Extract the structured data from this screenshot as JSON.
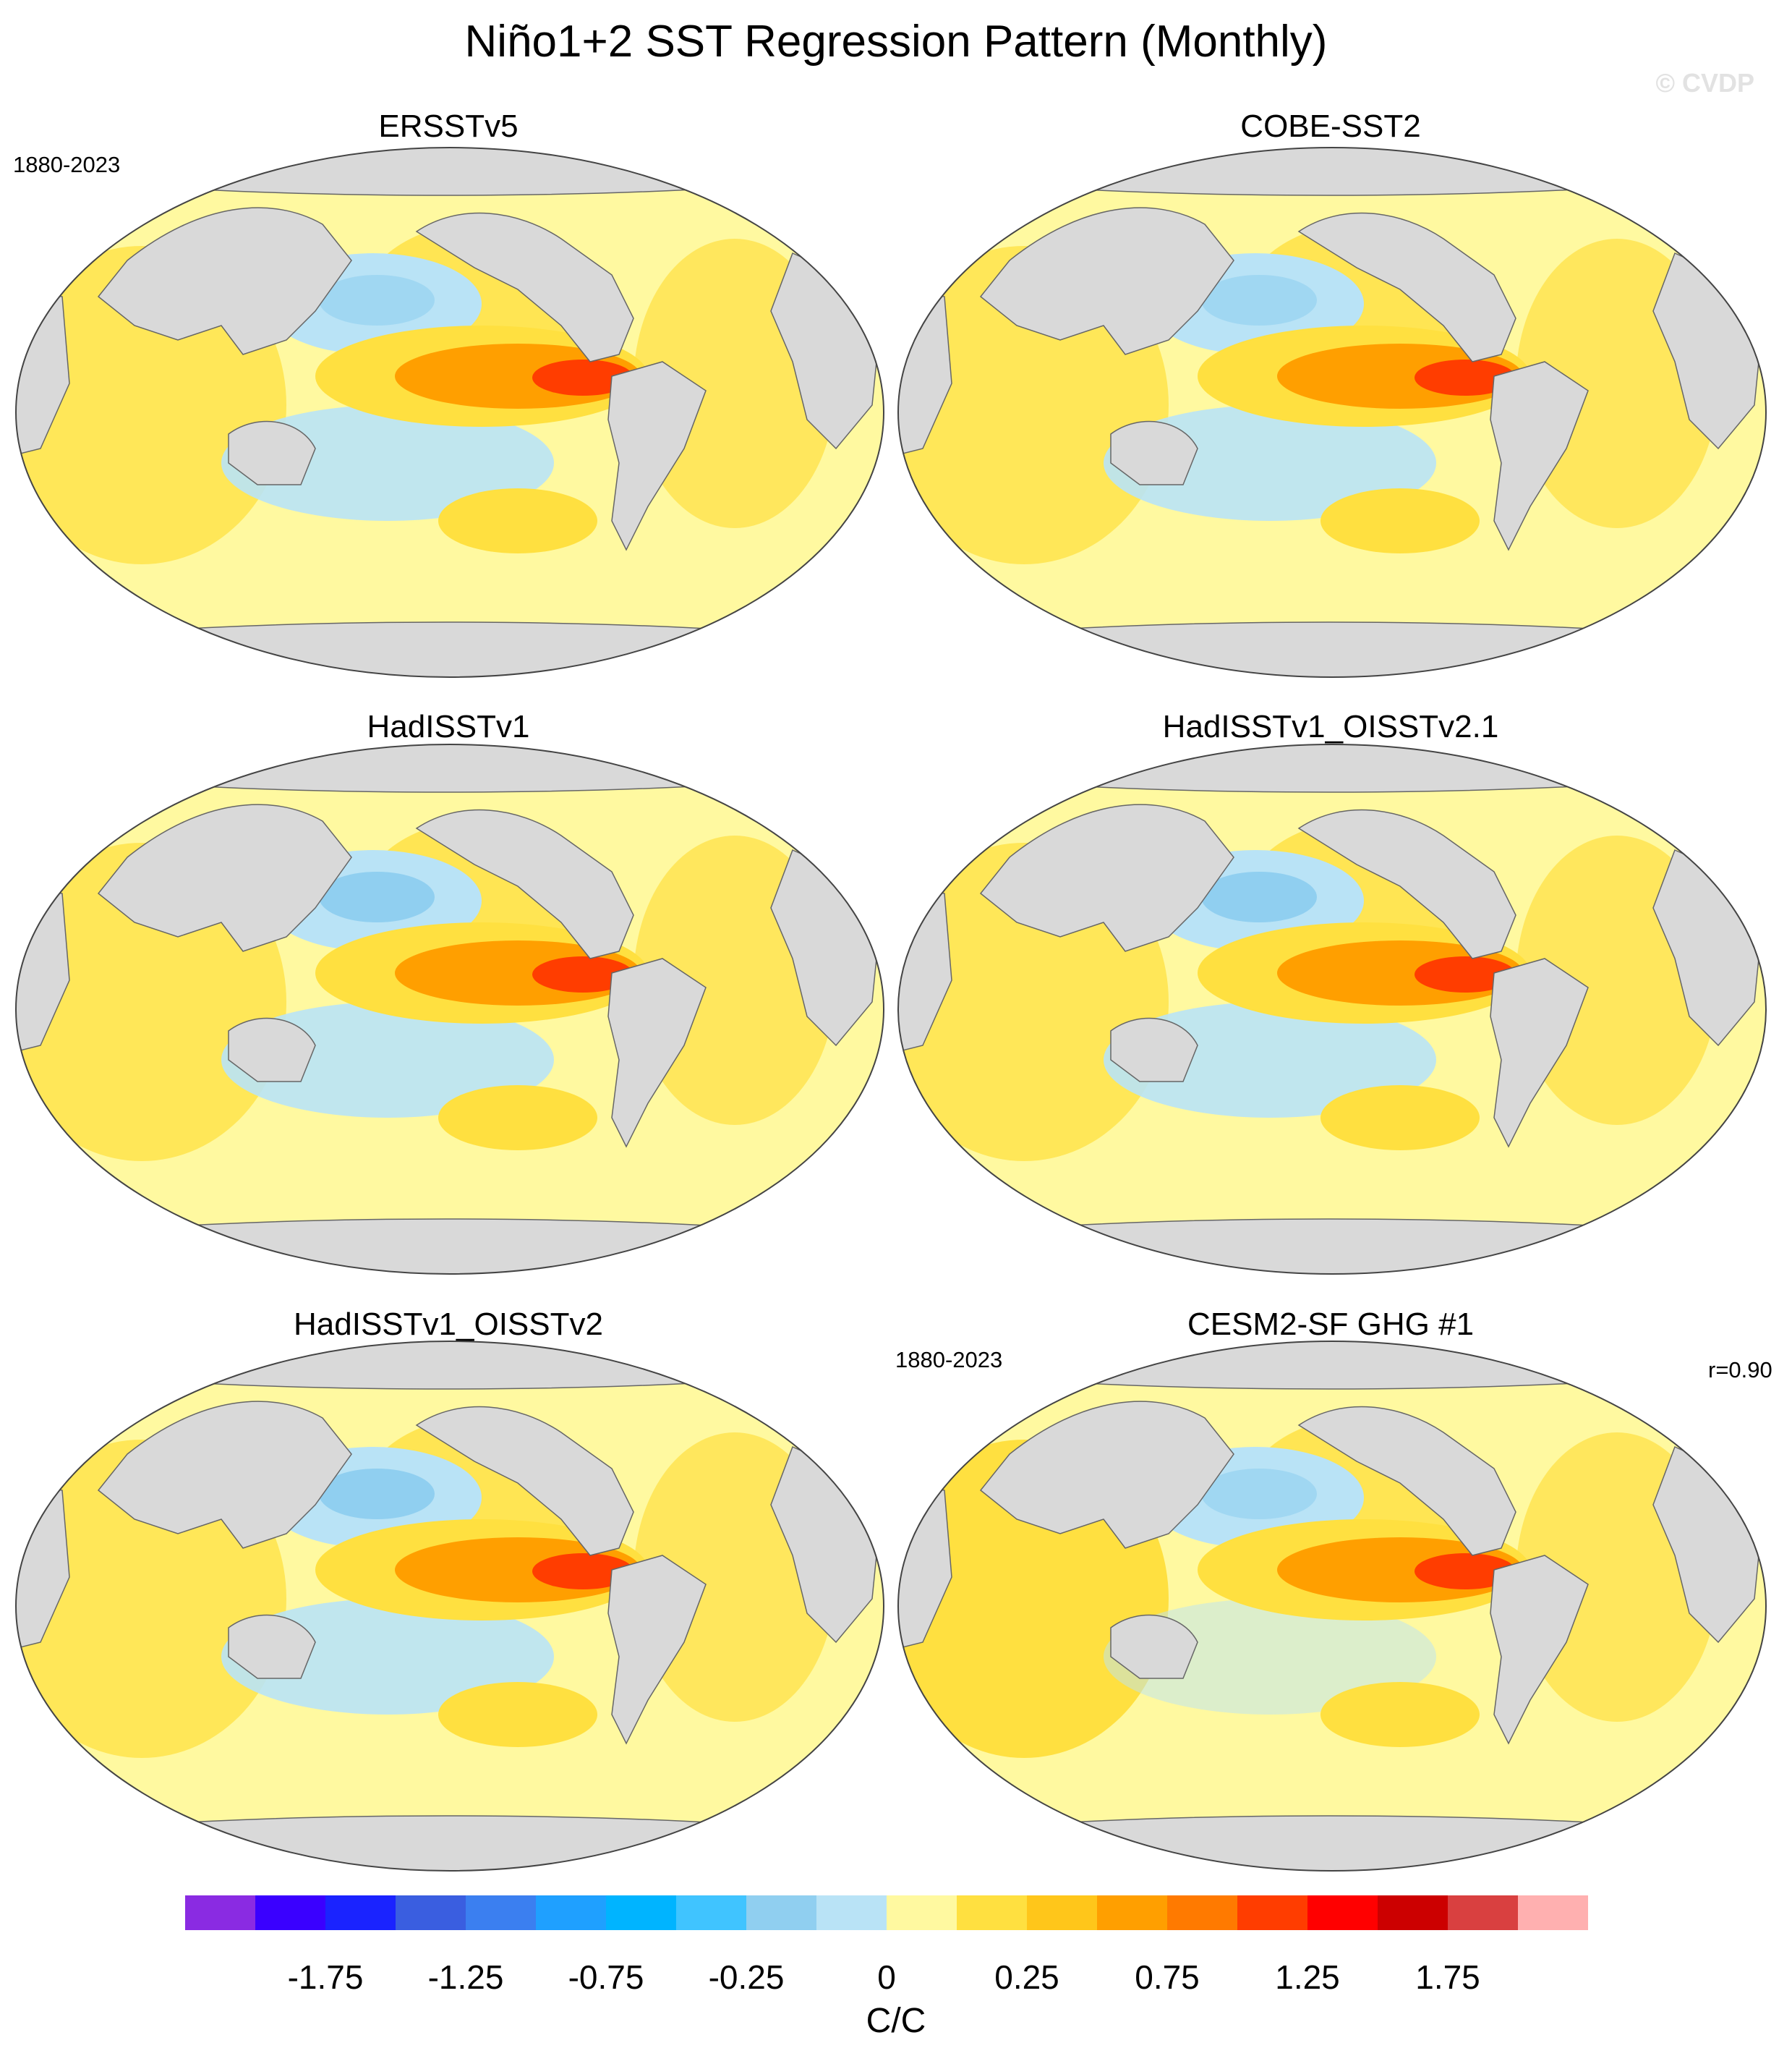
{
  "title": "Niño1+2 SST Regression Pattern (Monthly)",
  "copyright": "© CVDP",
  "panels": [
    {
      "title": "ERSSTv5",
      "left_label": "1880-2023",
      "right_label": ""
    },
    {
      "title": "COBE-SST2",
      "left_label": "",
      "right_label": ""
    },
    {
      "title": "HadISSTv1",
      "left_label": "",
      "right_label": ""
    },
    {
      "title": "HadISSTv1_OISSTv2.1",
      "left_label": "",
      "right_label": ""
    },
    {
      "title": "HadISSTv1_OISSTv2",
      "left_label": "",
      "right_label": ""
    },
    {
      "title": "CESM2-SF GHG #1",
      "left_label": "1880-2023",
      "right_label": "r=0.90"
    }
  ],
  "colorbar": {
    "colors": [
      "#8a2be2",
      "#3a00ff",
      "#1a23ff",
      "#3a5ee0",
      "#3b7ff0",
      "#1fa0ff",
      "#00b4ff",
      "#40c4ff",
      "#90cff0",
      "#b9e3f6",
      "#fff9a0",
      "#ffe040",
      "#ffc61a",
      "#ff9f00",
      "#ff7a00",
      "#ff3d00",
      "#ff0000",
      "#cc0000",
      "#d94040",
      "#ffb0b0"
    ],
    "tick_labels": [
      "-1.75",
      "-1.25",
      "-0.75",
      "-0.25",
      "0",
      "0.25",
      "0.75",
      "1.25",
      "1.75"
    ],
    "units": "C/C"
  },
  "map_colors": {
    "land": "#d9d9d9",
    "ocean_base": "#fff9a0",
    "positive": "#ffe040",
    "strong_positive": "#ff9f00",
    "max_positive": "#ff3d00",
    "negative": "#b9e3f6",
    "strong_negative": "#90cff0"
  }
}
